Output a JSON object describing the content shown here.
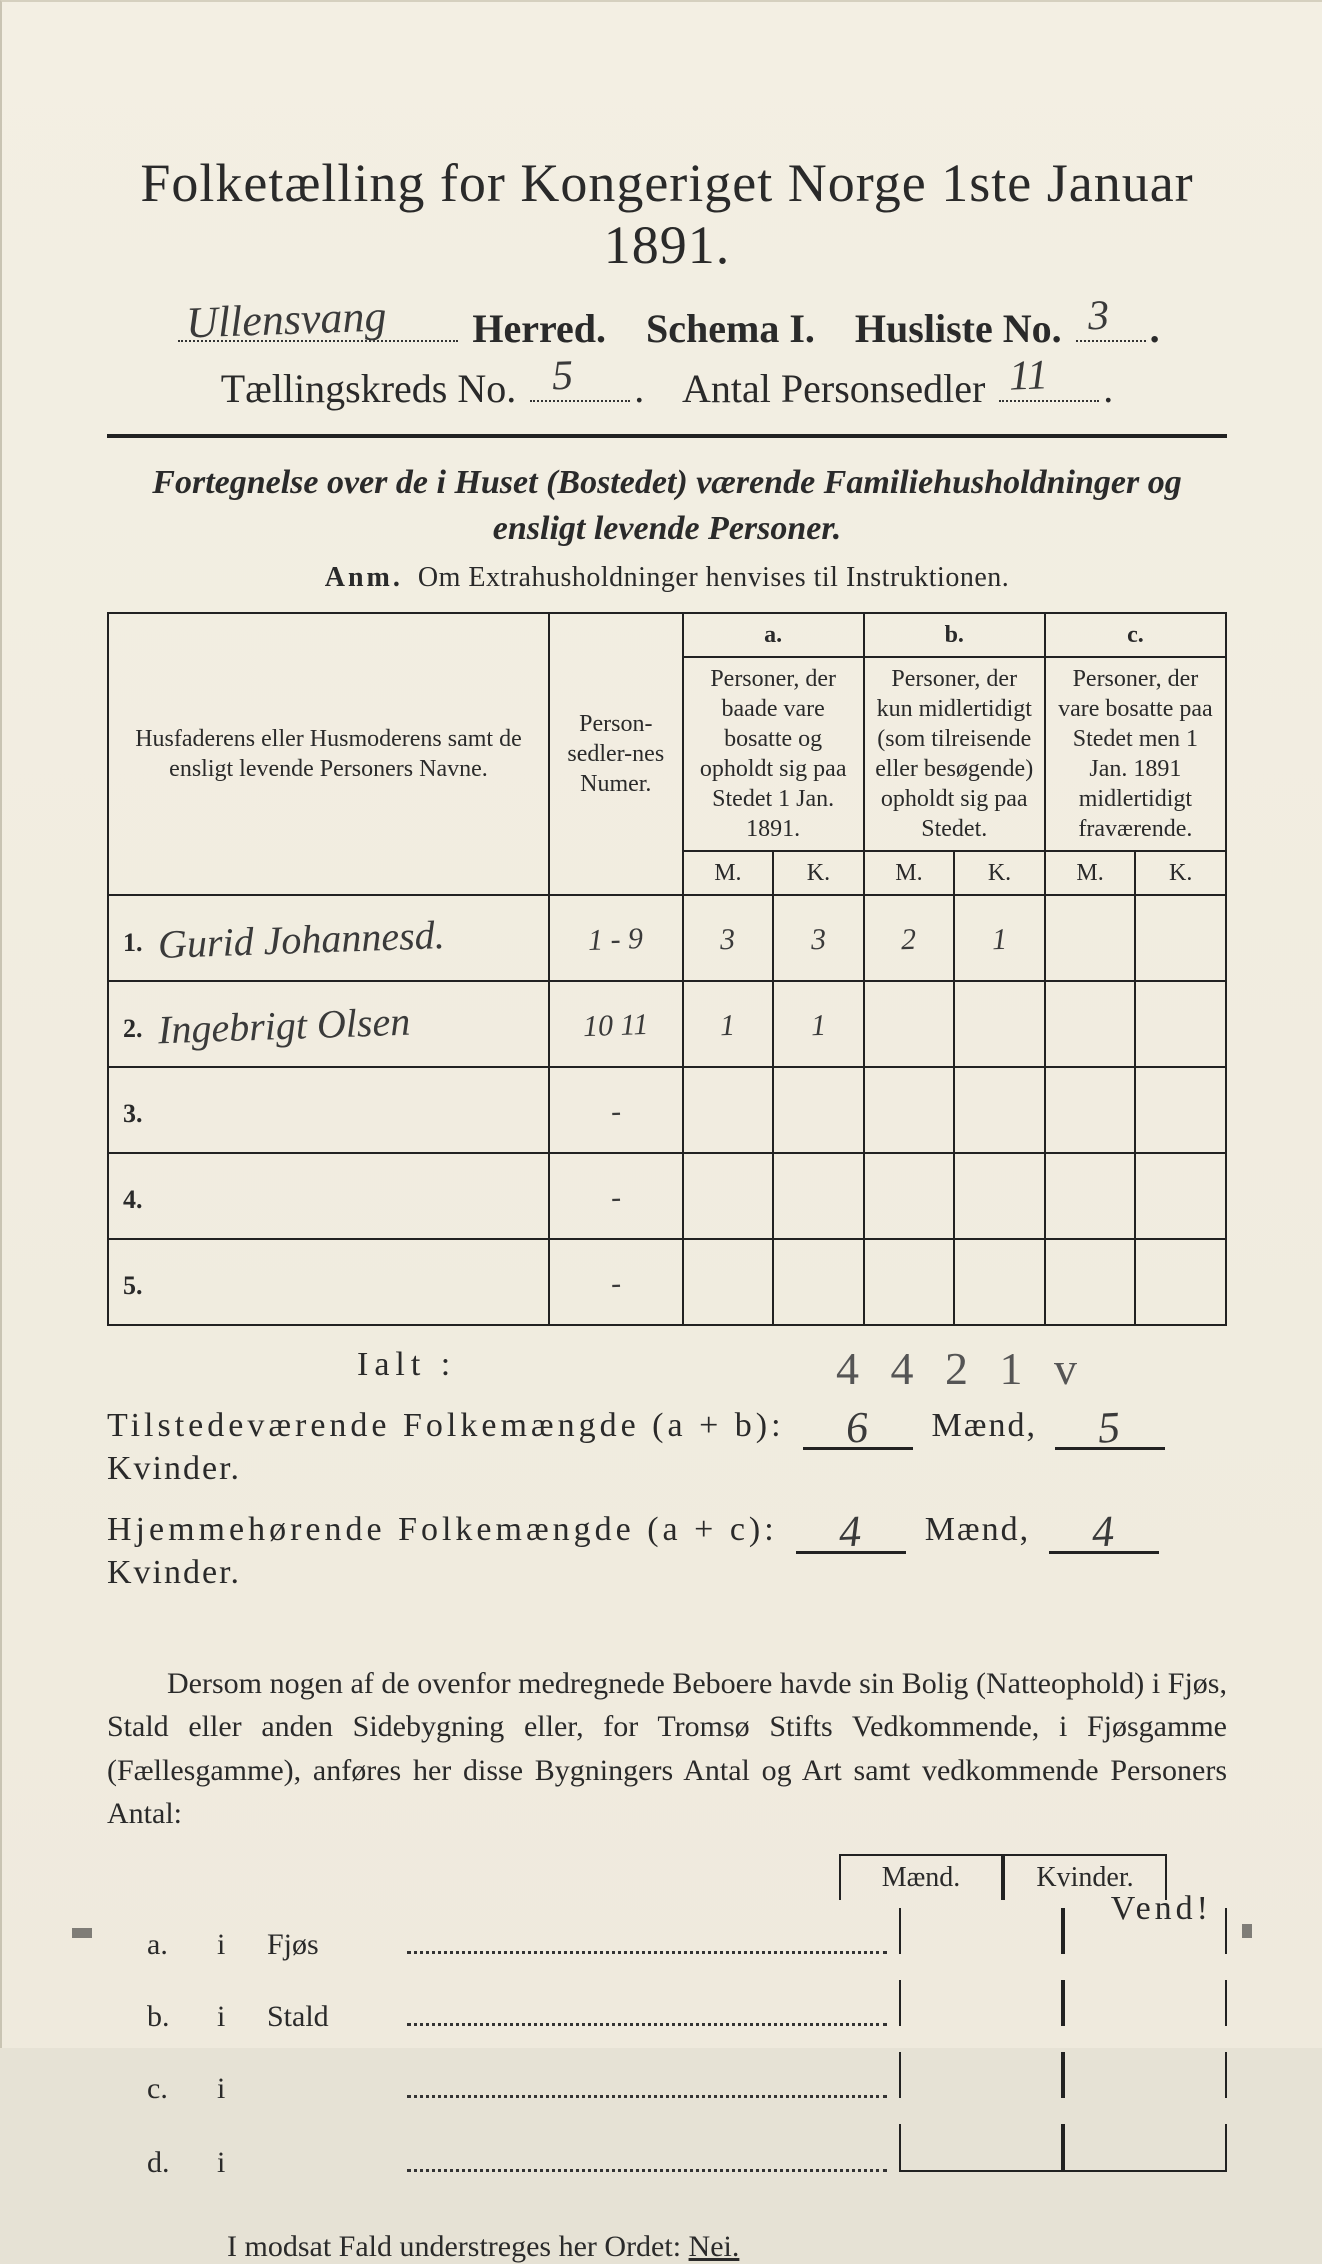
{
  "background_color": "#f1ecdf",
  "ink_color": "#2a2a2a",
  "hand_color": "#3a3a3a",
  "rule_color": "#222222",
  "title": "Folketælling for Kongeriget Norge 1ste Januar 1891.",
  "line2": {
    "herred_hand": "Ullensvang",
    "herred_label": "Herred.",
    "schema_label": "Schema I.",
    "husliste_label": "Husliste No.",
    "husliste_hand": "3"
  },
  "line3": {
    "kreds_label": "Tællingskreds No.",
    "kreds_hand": "5",
    "antal_label": "Antal Personsedler",
    "antal_hand": "11"
  },
  "subtitle": "Fortegnelse over de i Huset (Bostedet) værende Familiehusholdninger og ensligt levende Personer.",
  "anm_bold": "Anm.",
  "anm_text": "Om Extrahusholdninger henvises til Instruktionen.",
  "table": {
    "head_names": "Husfaderens eller Husmoderens samt de ensligt levende Personers Navne.",
    "head_numer": "Person-sedler-nes Numer.",
    "head_a_title": "a.",
    "head_a": "Personer, der baade vare bosatte og opholdt sig paa Stedet 1 Jan. 1891.",
    "head_b_title": "b.",
    "head_b": "Personer, der kun midlertidigt (som tilreisende eller besøgende) opholdt sig paa Stedet.",
    "head_c_title": "c.",
    "head_c": "Personer, der vare bosatte paa Stedet men 1 Jan. 1891 midlertidigt fraværende.",
    "mk_m": "M.",
    "mk_k": "K.",
    "rows": [
      {
        "n": "1.",
        "name_hand": "Gurid Johannesd.",
        "numer_hand": "1 - 9",
        "a_m": "3",
        "a_k": "3",
        "b_m": "2",
        "b_k": "1",
        "c_m": "",
        "c_k": ""
      },
      {
        "n": "2.",
        "name_hand": "Ingebrigt Olsen",
        "numer_hand": "10 11",
        "a_m": "1",
        "a_k": "1",
        "b_m": "",
        "b_k": "",
        "c_m": "",
        "c_k": ""
      },
      {
        "n": "3.",
        "name_hand": "",
        "numer_hand": "-",
        "a_m": "",
        "a_k": "",
        "b_m": "",
        "b_k": "",
        "c_m": "",
        "c_k": ""
      },
      {
        "n": "4.",
        "name_hand": "",
        "numer_hand": "-",
        "a_m": "",
        "a_k": "",
        "b_m": "",
        "b_k": "",
        "c_m": "",
        "c_k": ""
      },
      {
        "n": "5.",
        "name_hand": "",
        "numer_hand": "-",
        "a_m": "",
        "a_k": "",
        "b_m": "",
        "b_k": "",
        "c_m": "",
        "c_k": ""
      }
    ]
  },
  "ialt_label": "Ialt :",
  "ialt_hand": "4   4   2   1  v",
  "sums": {
    "line1_label": "Tilstedeværende Folkemængde (a + b):",
    "line1_m": "6",
    "line1_mlabel": "Mænd,",
    "line1_k": "5",
    "line1_klabel": "Kvinder.",
    "line2_label": "Hjemmehørende Folkemængde (a + c):",
    "line2_m": "4",
    "line2_mlabel": "Mænd,",
    "line2_k": "4",
    "line2_klabel": "Kvinder."
  },
  "para": "Dersom nogen af de ovenfor medregnede Beboere havde sin Bolig (Natteophold) i Fjøs, Stald eller anden Sidebygning eller, for Tromsø Stifts Vedkommende, i Fjøsgamme (Fællesgamme), anføres her disse Bygningers Antal og Art samt vedkommende Personers Antal:",
  "mk_head_m": "Mænd.",
  "mk_head_k": "Kvinder.",
  "abcd": {
    "a": {
      "lbl": "a.",
      "i": "i",
      "what": "Fjøs"
    },
    "b": {
      "lbl": "b.",
      "i": "i",
      "what": "Stald"
    },
    "c": {
      "lbl": "c.",
      "i": "i",
      "what": ""
    },
    "d": {
      "lbl": "d.",
      "i": "i",
      "what": ""
    }
  },
  "nei_line_pre": "I modsat Fald understreges her Ordet:",
  "nei_word": "Nei.",
  "vend": "Vend!"
}
